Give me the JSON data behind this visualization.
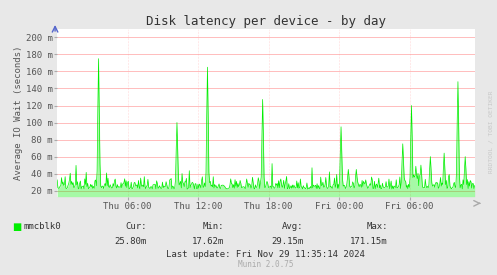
{
  "title": "Disk latency per device - by day",
  "ylabel": "Average IO Wait (seconds)",
  "bg_color": "#E8E8E8",
  "plot_bg_color": "#FFFFFF",
  "grid_color": "#FF9999",
  "grid_color_minor": "#FFDDDD",
  "line_color": "#00EE00",
  "fill_color": "#00EE00",
  "x_tick_labels": [
    "Thu 06:00",
    "Thu 12:00",
    "Thu 18:00",
    "Fri 00:00",
    "Fri 06:00"
  ],
  "y_tick_labels": [
    "20 m",
    "40 m",
    "60 m",
    "80 m",
    "100 m",
    "120 m",
    "140 m",
    "160 m",
    "180 m",
    "200 m"
  ],
  "y_tick_values": [
    0.02,
    0.04,
    0.06,
    0.08,
    0.1,
    0.12,
    0.14,
    0.16,
    0.18,
    0.2
  ],
  "ylim_min": 0.013,
  "ylim_max": 0.21,
  "legend_label": "mmcblk0",
  "cur_val": "25.80m",
  "min_val": "17.62m",
  "avg_val": "29.15m",
  "max_val": "171.15m",
  "last_update": "Last update: Fri Nov 29 11:35:14 2024",
  "munin_version": "Munin 2.0.75",
  "watermark": "RRDTOOL / TOBI OETIKER",
  "title_fontsize": 9,
  "axis_fontsize": 6.5,
  "legend_fontsize": 6.5,
  "n_points": 576,
  "total_hours": 35.6,
  "x_tick_hours": [
    6,
    12,
    18,
    24,
    30
  ]
}
